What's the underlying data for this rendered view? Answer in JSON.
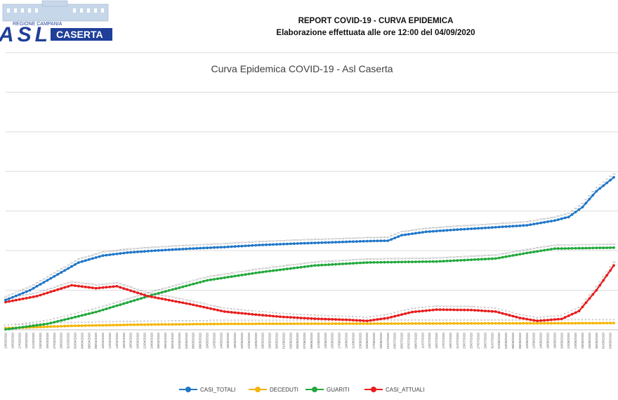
{
  "header": {
    "logo": {
      "region_text": "REGIONE CAMPANIA",
      "brand": "ASL",
      "city": "CASERTA",
      "colors": {
        "blue": "#1f3f99",
        "sky": "#8fb7e6"
      }
    },
    "report_title": "REPORT COVID-19 - CURVA EPIDEMICA",
    "report_subtitle": "Elaborazione effettuata alle ore 12:00 del 04/09/2020"
  },
  "chart_data": {
    "type": "line",
    "title": "Curva Epidemica COVID-19 - Asl Caserta",
    "xlabel": "",
    "ylabel": "",
    "x_start": "13/03/2020",
    "x_end": "04/09/2020",
    "tick_label_step_days": 2,
    "ylim": [
      0,
      1400
    ],
    "gridlines": [
      200,
      400,
      600,
      800,
      1000,
      1200,
      1400
    ],
    "y_tick_labels_visible": false,
    "data_labels_visible": true,
    "legend_position": "bottom",
    "series": [
      {
        "name": "CASI_TOTALI",
        "color": "#1f77c8",
        "points": [
          [
            "13/03/2020",
            150
          ],
          [
            "20/03/2020",
            200
          ],
          [
            "27/03/2020",
            270
          ],
          [
            "03/04/2020",
            340
          ],
          [
            "10/04/2020",
            375
          ],
          [
            "17/04/2020",
            390
          ],
          [
            "25/04/2020",
            400
          ],
          [
            "05/05/2020",
            410
          ],
          [
            "15/05/2020",
            418
          ],
          [
            "25/05/2020",
            428
          ],
          [
            "05/06/2020",
            436
          ],
          [
            "15/06/2020",
            442
          ],
          [
            "25/06/2020",
            448
          ],
          [
            "01/07/2020",
            450
          ],
          [
            "05/07/2020",
            478
          ],
          [
            "12/07/2020",
            495
          ],
          [
            "20/07/2020",
            505
          ],
          [
            "01/08/2020",
            518
          ],
          [
            "10/08/2020",
            528
          ],
          [
            "18/08/2020",
            552
          ],
          [
            "22/08/2020",
            570
          ],
          [
            "26/08/2020",
            620
          ],
          [
            "30/08/2020",
            700
          ],
          [
            "04/09/2020",
            770
          ]
        ]
      },
      {
        "name": "DECEDUTI",
        "color": "#f5b400",
        "points": [
          [
            "13/03/2020",
            8
          ],
          [
            "01/04/2020",
            20
          ],
          [
            "20/04/2020",
            26
          ],
          [
            "15/05/2020",
            30
          ],
          [
            "15/06/2020",
            31
          ],
          [
            "15/07/2020",
            32
          ],
          [
            "15/08/2020",
            33
          ],
          [
            "04/09/2020",
            34
          ]
        ]
      },
      {
        "name": "GUARITI",
        "color": "#22a83c",
        "points": [
          [
            "13/03/2020",
            2
          ],
          [
            "25/03/2020",
            30
          ],
          [
            "08/04/2020",
            90
          ],
          [
            "25/04/2020",
            180
          ],
          [
            "10/05/2020",
            250
          ],
          [
            "25/05/2020",
            290
          ],
          [
            "10/06/2020",
            325
          ],
          [
            "25/06/2020",
            340
          ],
          [
            "15/07/2020",
            345
          ],
          [
            "01/08/2020",
            360
          ],
          [
            "10/08/2020",
            388
          ],
          [
            "18/08/2020",
            410
          ],
          [
            "04/09/2020",
            415
          ]
        ]
      },
      {
        "name": "CASI_ATTUALI",
        "color": "#e81d1d",
        "points": [
          [
            "13/03/2020",
            140
          ],
          [
            "22/03/2020",
            170
          ],
          [
            "01/04/2020",
            225
          ],
          [
            "08/04/2020",
            210
          ],
          [
            "14/04/2020",
            220
          ],
          [
            "23/04/2020",
            170
          ],
          [
            "05/05/2020",
            130
          ],
          [
            "15/05/2020",
            92
          ],
          [
            "25/05/2020",
            75
          ],
          [
            "01/06/2020",
            65
          ],
          [
            "10/06/2020",
            56
          ],
          [
            "20/06/2020",
            50
          ],
          [
            "25/06/2020",
            45
          ],
          [
            "01/07/2020",
            60
          ],
          [
            "08/07/2020",
            90
          ],
          [
            "15/07/2020",
            102
          ],
          [
            "25/07/2020",
            100
          ],
          [
            "01/08/2020",
            92
          ],
          [
            "08/08/2020",
            60
          ],
          [
            "13/08/2020",
            45
          ],
          [
            "20/08/2020",
            55
          ],
          [
            "25/08/2020",
            95
          ],
          [
            "30/08/2020",
            200
          ],
          [
            "04/09/2020",
            325
          ]
        ]
      }
    ]
  }
}
